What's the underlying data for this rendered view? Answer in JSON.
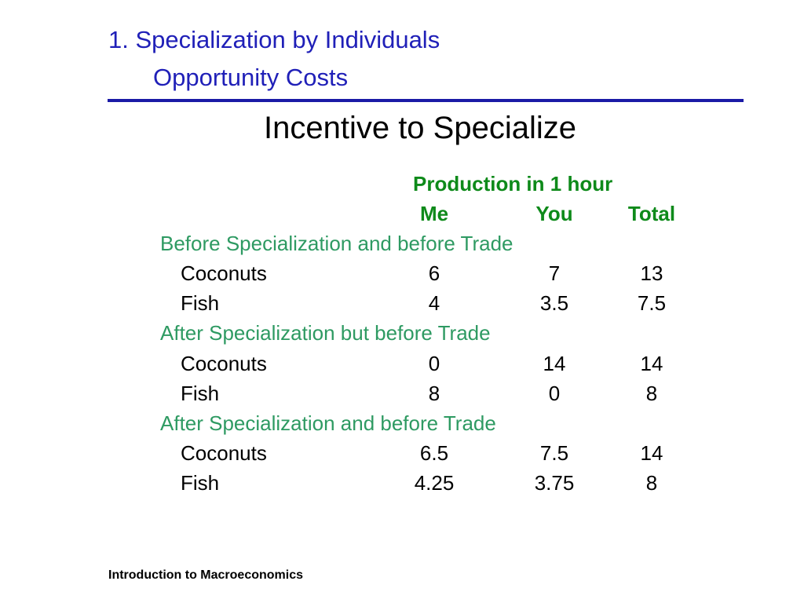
{
  "header": {
    "title_line1": "1.  Specialization by Individuals",
    "title_line2": "Opportunity Costs"
  },
  "subtitle": "Incentive to Specialize",
  "table": {
    "group_header": "Production in 1 hour",
    "columns": [
      "Me",
      "You",
      "Total"
    ],
    "sections": [
      {
        "label": "Before Specialization and before Trade",
        "rows": [
          {
            "item": "Coconuts",
            "me": "6",
            "you": "7",
            "total": "13"
          },
          {
            "item": "Fish",
            "me": "4",
            "you": "3.5",
            "total": "7.5"
          }
        ]
      },
      {
        "label": "After Specialization but before Trade",
        "rows": [
          {
            "item": "Coconuts",
            "me": "0",
            "you": "14",
            "total": "14"
          },
          {
            "item": "Fish",
            "me": "8",
            "you": "0",
            "total": "8"
          }
        ]
      },
      {
        "label": "After Specialization and before Trade",
        "rows": [
          {
            "item": "Coconuts",
            "me": "6.5",
            "you": "7.5",
            "total": "14"
          },
          {
            "item": "Fish",
            "me": "4.25",
            "you": "3.75",
            "total": "8"
          }
        ]
      }
    ]
  },
  "footer": "Introduction to Macroeconomics",
  "colors": {
    "title": "#2020b8",
    "rule": "#1a1aa6",
    "header_green": "#0e8a1a",
    "section_green": "#2e9a62"
  }
}
